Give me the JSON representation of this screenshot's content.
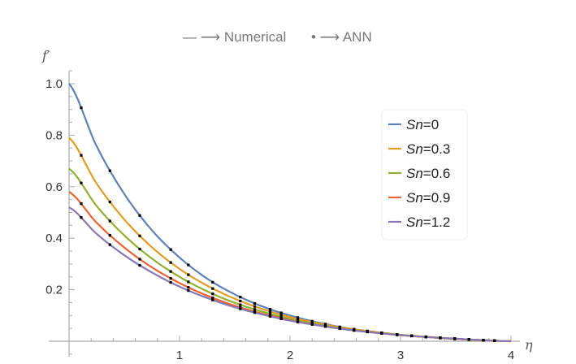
{
  "chart_data": {
    "type": "line",
    "title_numerical": "— ⟶ Numerical",
    "title_ann": "• ⟶ ANN",
    "xlabel": "η",
    "ylabel": "f′",
    "xlim": [
      0,
      4
    ],
    "ylim": [
      -0.05,
      1.05
    ],
    "xticks": [
      "1",
      "2",
      "3",
      "4"
    ],
    "xtick_values": [
      1,
      2,
      3,
      4
    ],
    "yticks": [
      "0.2",
      "0.4",
      "0.6",
      "0.8",
      "1.0"
    ],
    "ytick_values": [
      0.2,
      0.4,
      0.6,
      0.8,
      1.0
    ],
    "legend_position": "right",
    "x": [
      0,
      0.25,
      0.5,
      0.75,
      1,
      1.25,
      1.5,
      1.75,
      2,
      2.25,
      2.5,
      2.75,
      3,
      3.25,
      3.5,
      3.75,
      4
    ],
    "ann_eta": [
      0.11,
      0.37,
      0.64,
      0.92,
      1.08,
      1.3,
      1.55,
      1.68,
      1.82,
      1.92,
      2.07,
      2.2,
      2.32,
      2.45,
      2.58,
      2.7,
      2.83,
      2.97,
      3.1,
      3.23,
      3.36,
      3.49,
      3.62,
      3.75,
      3.85
    ],
    "series": [
      {
        "name": "Sn",
        "value": "=0",
        "color": "#5E81B5",
        "values": [
          1.0,
          0.757,
          0.572,
          0.431,
          0.325,
          0.243,
          0.182,
          0.135,
          0.1,
          0.073,
          0.052,
          0.037,
          0.025,
          0.016,
          0.009,
          0.004,
          0.0
        ]
      },
      {
        "name": "Sn",
        "value": "=0.3",
        "color": "#E19C24",
        "values": [
          0.79,
          0.612,
          0.473,
          0.365,
          0.281,
          0.216,
          0.165,
          0.125,
          0.094,
          0.07,
          0.051,
          0.037,
          0.025,
          0.017,
          0.01,
          0.004,
          0.0
        ]
      },
      {
        "name": "Sn",
        "value": "=0.6",
        "color": "#8FB032",
        "values": [
          0.67,
          0.525,
          0.411,
          0.321,
          0.25,
          0.194,
          0.149,
          0.115,
          0.087,
          0.065,
          0.048,
          0.035,
          0.024,
          0.016,
          0.009,
          0.004,
          0.0
        ]
      },
      {
        "name": "Sn",
        "value": "=0.9",
        "color": "#EB6235",
        "values": [
          0.58,
          0.46,
          0.364,
          0.287,
          0.226,
          0.177,
          0.138,
          0.107,
          0.082,
          0.062,
          0.047,
          0.034,
          0.024,
          0.016,
          0.009,
          0.004,
          0.0
        ]
      },
      {
        "name": "Sn",
        "value": "=1.2",
        "color": "#8778B3",
        "values": [
          0.52,
          0.417,
          0.334,
          0.267,
          0.212,
          0.168,
          0.132,
          0.104,
          0.08,
          0.062,
          0.046,
          0.034,
          0.024,
          0.016,
          0.01,
          0.004,
          0.0
        ]
      }
    ]
  }
}
